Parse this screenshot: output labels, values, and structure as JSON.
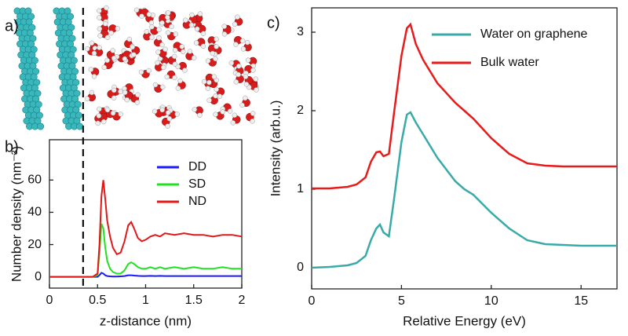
{
  "image_panel": {
    "label": "a)"
  },
  "chart_data": [
    {
      "type": "line",
      "panel_label": "b)",
      "x_label": "z-distance (nm)",
      "y_label": "Number density (nm⁻³)",
      "x": [
        0,
        0.3,
        0.45,
        0.5,
        0.52,
        0.54,
        0.56,
        0.58,
        0.6,
        0.63,
        0.66,
        0.7,
        0.74,
        0.78,
        0.82,
        0.85,
        0.88,
        0.92,
        0.96,
        1.0,
        1.05,
        1.1,
        1.15,
        1.2,
        1.3,
        1.4,
        1.5,
        1.6,
        1.7,
        1.8,
        1.9,
        2.0
      ],
      "series": [
        {
          "name": "DD",
          "color": "#1a1aff",
          "values": [
            0,
            0,
            0,
            0,
            1,
            2.5,
            2,
            1,
            0.5,
            0.3,
            0.2,
            0.2,
            0.3,
            0.5,
            1,
            1,
            0.8,
            0.6,
            0.5,
            0.5,
            0.6,
            0.5,
            0.6,
            0.5,
            0.5,
            0.5,
            0.5,
            0.5,
            0.5,
            0.5,
            0.5,
            0.5
          ]
        },
        {
          "name": "SD",
          "color": "#22e022",
          "values": [
            0,
            0,
            0,
            1,
            15,
            33,
            30,
            18,
            10,
            5,
            3,
            2,
            2,
            4,
            8,
            9,
            8,
            6,
            5,
            5,
            6,
            5,
            6,
            5,
            6,
            5,
            6,
            5,
            5,
            6,
            5,
            5
          ]
        },
        {
          "name": "ND",
          "color": "#e01818",
          "values": [
            0,
            0,
            0,
            2,
            20,
            50,
            60,
            48,
            35,
            25,
            18,
            14,
            15,
            22,
            32,
            34,
            30,
            24,
            22,
            23,
            25,
            26,
            25,
            27,
            26,
            27,
            26,
            26,
            25,
            26,
            26,
            25
          ]
        }
      ],
      "xlim": [
        0,
        2
      ],
      "xticks": [
        0,
        0.5,
        1,
        1.5,
        2
      ],
      "ylim": [
        -7,
        85
      ],
      "yticks": [
        0,
        20,
        40,
        60
      ],
      "dashed_line_x": 0.35,
      "legend": "top-right",
      "grid": false
    },
    {
      "type": "line",
      "panel_label": "c)",
      "x_label": "Relative Energy (eV)",
      "y_label": "Intensity (arb.u.)",
      "x": [
        0,
        1,
        2,
        2.5,
        3,
        3.3,
        3.6,
        3.8,
        4,
        4.3,
        4.6,
        5,
        5.3,
        5.5,
        5.8,
        6.2,
        7,
        8,
        8.5,
        9,
        10,
        11,
        12,
        13,
        14,
        15,
        16,
        17
      ],
      "series": [
        {
          "name": "Water on graphene",
          "color": "#3aaaa8",
          "values": [
            0,
            0.01,
            0.03,
            0.06,
            0.15,
            0.35,
            0.5,
            0.55,
            0.45,
            0.4,
            0.9,
            1.6,
            1.95,
            1.98,
            1.85,
            1.7,
            1.4,
            1.1,
            1.0,
            0.93,
            0.7,
            0.5,
            0.35,
            0.3,
            0.29,
            0.28,
            0.28,
            0.28
          ]
        },
        {
          "name": "Bulk water",
          "color": "#e81a1a",
          "values": [
            1.01,
            1.01,
            1.03,
            1.06,
            1.15,
            1.35,
            1.47,
            1.48,
            1.42,
            1.45,
            2.0,
            2.7,
            3.05,
            3.1,
            2.85,
            2.65,
            2.35,
            2.1,
            2.0,
            1.9,
            1.65,
            1.45,
            1.33,
            1.3,
            1.29,
            1.29,
            1.29,
            1.29
          ]
        }
      ],
      "xlim": [
        0,
        17
      ],
      "xticks": [
        0,
        5,
        10,
        15
      ],
      "ylim": [
        -0.27,
        3.31
      ],
      "yticks": [
        0,
        1,
        2,
        3
      ],
      "legend": "top-right",
      "grid": false
    }
  ]
}
